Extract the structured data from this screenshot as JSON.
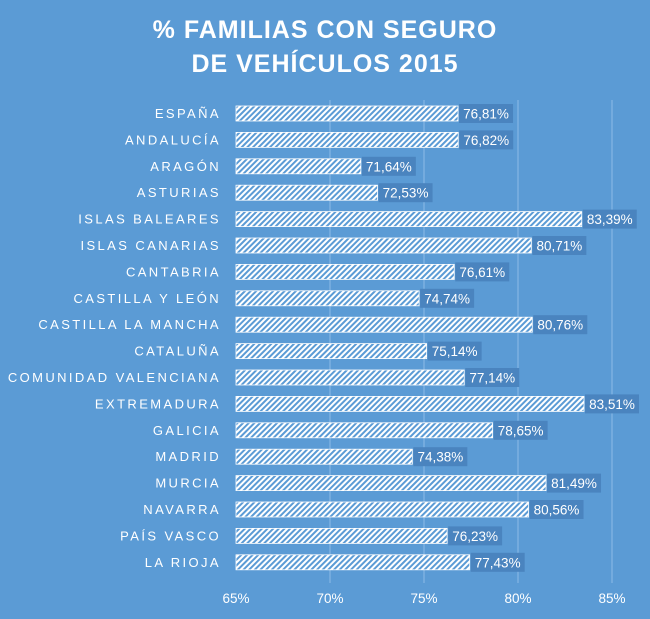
{
  "chart_data": {
    "type": "bar",
    "orientation": "horizontal",
    "title_lines": [
      "% FAMILIAS  CON SEGURO",
      "DE VEHÍCULOS  2015"
    ],
    "categories": [
      "ESPAÑA",
      "ANDALUCÍA",
      "ARAGÓN",
      "ASTURIAS",
      "ISLAS BALEARES",
      "ISLAS CANARIAS",
      "CANTABRIA",
      "CASTILLA Y LEÓN",
      "CASTILLA LA MANCHA",
      "CATALUÑA",
      "COMUNIDAD VALENCIANA",
      "EXTREMADURA",
      "GALICIA",
      "MADRID",
      "MURCIA",
      "NAVARRA",
      "PAÍS VASCO",
      "LA RIOJA"
    ],
    "values": [
      76.81,
      76.82,
      71.64,
      72.53,
      83.39,
      80.71,
      76.61,
      74.74,
      80.76,
      75.14,
      77.14,
      83.51,
      78.65,
      74.38,
      81.49,
      80.56,
      76.23,
      77.43
    ],
    "value_labels": [
      "76,81%",
      "76,82%",
      "71,64%",
      "72,53%",
      "83,39%",
      "80,71%",
      "76,61%",
      "74,74%",
      "80,76%",
      "75,14%",
      "77,14%",
      "83,51%",
      "78,65%",
      "74,38%",
      "81,49%",
      "80,56%",
      "76,23%",
      "77,43%"
    ],
    "xlim": [
      65,
      85
    ],
    "xticks": [
      65,
      70,
      75,
      80,
      85
    ],
    "xtick_labels": [
      "65%",
      "70%",
      "75%",
      "80%",
      "85%"
    ],
    "grid": true,
    "legend": "none",
    "colors": {
      "background": "#5b9bd5",
      "bar_fill": "#ffffff",
      "bar_pattern": "diagonal-hatch",
      "label_box": "#4a84bf",
      "text": "#ffffff"
    }
  }
}
